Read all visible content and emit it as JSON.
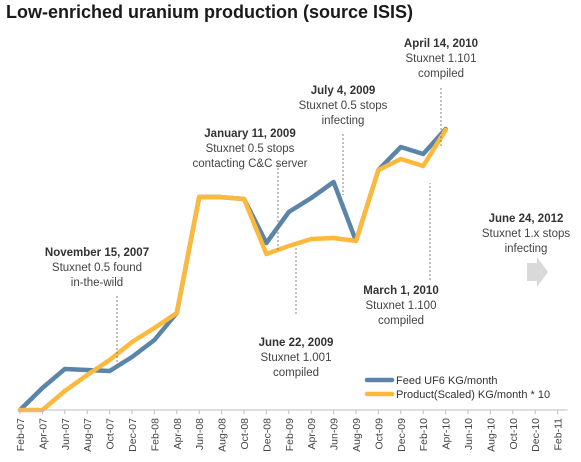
{
  "title": "Low-enriched uranium production (source ISIS)",
  "chart_data": {
    "type": "line",
    "title": "Low-enriched uranium production (source ISIS)",
    "x": [
      "Feb-07",
      "Apr-07",
      "Jun-07",
      "Aug-07",
      "Oct-07",
      "Dec-07",
      "Feb-08",
      "Apr-08",
      "Jun-08",
      "Aug-08",
      "Oct-08",
      "Dec-08",
      "Feb-09",
      "Apr-09",
      "Jun-09",
      "Aug-09",
      "Oct-09",
      "Dec-09",
      "Feb-10",
      "Apr-10",
      "Jun-10",
      "Aug-10",
      "Oct-10",
      "Dec-10",
      "Feb-11"
    ],
    "grid": false,
    "legend_position": "bottom-right",
    "series": [
      {
        "name": "Feed UF6 KG/month",
        "color": "#5a84a8",
        "points": [
          {
            "x": 0,
            "y": 0
          },
          {
            "x": 1,
            "y": 22
          },
          {
            "x": 2,
            "y": 41
          },
          {
            "x": 3,
            "y": 40
          },
          {
            "x": 4,
            "y": 39
          },
          {
            "x": 5,
            "y": 53
          },
          {
            "x": 6,
            "y": 70
          },
          {
            "x": 7,
            "y": 97
          },
          {
            "x": 8,
            "y": 213
          },
          {
            "x": 8.9,
            "y": 213
          },
          {
            "x": 10,
            "y": 211
          },
          {
            "x": 11,
            "y": 167
          },
          {
            "x": 12,
            "y": 198
          },
          {
            "x": 13,
            "y": 212
          },
          {
            "x": 14,
            "y": 228
          },
          {
            "x": 15,
            "y": 169
          },
          {
            "x": 16,
            "y": 240
          },
          {
            "x": 17,
            "y": 263
          },
          {
            "x": 18,
            "y": 256
          },
          {
            "x": 19,
            "y": 281
          }
        ]
      },
      {
        "name": "Product(Scaled) KG/month * 10",
        "color": "#fdb93c",
        "points": [
          {
            "x": 0,
            "y": 0
          },
          {
            "x": 1,
            "y": 0
          },
          {
            "x": 2,
            "y": 19
          },
          {
            "x": 3,
            "y": 35
          },
          {
            "x": 4,
            "y": 50
          },
          {
            "x": 5,
            "y": 68
          },
          {
            "x": 6,
            "y": 82
          },
          {
            "x": 7,
            "y": 97
          },
          {
            "x": 8,
            "y": 213
          },
          {
            "x": 8.9,
            "y": 213
          },
          {
            "x": 10,
            "y": 211
          },
          {
            "x": 11,
            "y": 156
          },
          {
            "x": 12,
            "y": 164
          },
          {
            "x": 13,
            "y": 171
          },
          {
            "x": 14,
            "y": 172
          },
          {
            "x": 15,
            "y": 169
          },
          {
            "x": 16,
            "y": 240
          },
          {
            "x": 17,
            "y": 251
          },
          {
            "x": 18,
            "y": 244
          },
          {
            "x": 19,
            "y": 280
          }
        ]
      }
    ],
    "annotations": [
      {
        "title": "November 15, 2007",
        "lines": [
          "Stuxnet 0.5 found",
          "in-the-wild"
        ]
      },
      {
        "title": "January 11, 2009",
        "lines": [
          "Stuxnet 0.5 stops",
          "contacting C&C server"
        ]
      },
      {
        "title": "July 4, 2009",
        "lines": [
          "Stuxnet 0.5 stops",
          "infecting"
        ]
      },
      {
        "title": "June 22, 2009",
        "lines": [
          "Stuxnet 1.001",
          "compiled"
        ]
      },
      {
        "title": "April 14, 2010",
        "lines": [
          "Stuxnet 1.101",
          "compiled"
        ]
      },
      {
        "title": "March 1, 2010",
        "lines": [
          "Stuxnet 1.100",
          "compiled"
        ]
      },
      {
        "title": "June 24, 2012",
        "lines": [
          "Stuxnet 1.x stops",
          "infecting"
        ]
      }
    ]
  }
}
